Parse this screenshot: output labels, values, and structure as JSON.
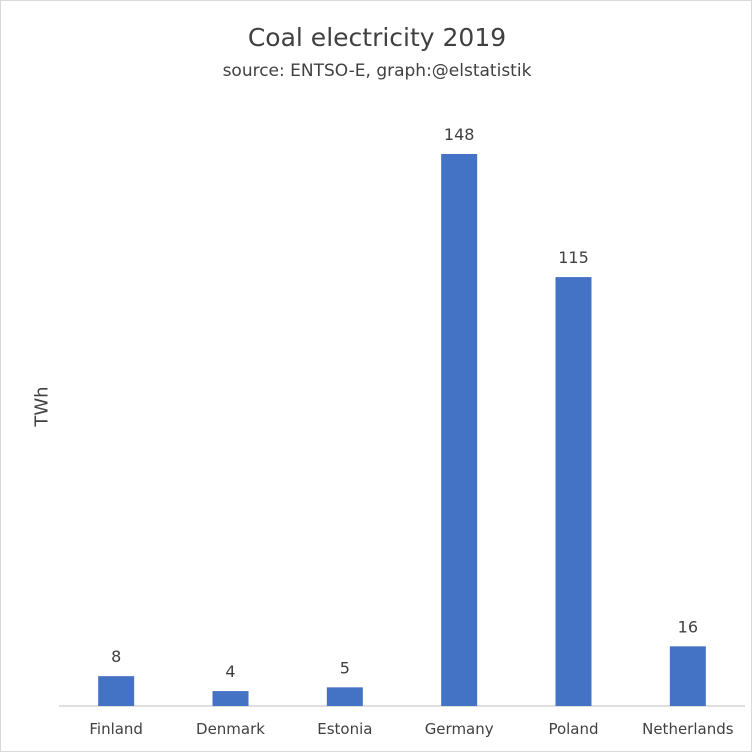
{
  "chart_data": {
    "type": "bar",
    "title": "Coal electricity 2019",
    "subtitle": "source: ENTSO-E, graph:@elstatistik",
    "xlabel": "",
    "ylabel": "TWh",
    "categories": [
      "Finland",
      "Denmark",
      "Estonia",
      "Germany",
      "Poland",
      "Netherlands"
    ],
    "values": [
      8,
      4,
      5,
      148,
      115,
      16
    ],
    "ylim": [
      0,
      160
    ],
    "grid": false,
    "legend": "none",
    "colors": {
      "bar": "#4472c4",
      "text": "#404040",
      "axis": "#bfbfbf"
    }
  }
}
